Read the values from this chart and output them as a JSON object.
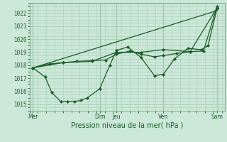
{
  "xlabel": "Pression niveau de la mer( hPa )",
  "bg_color": "#cce8d8",
  "grid_color": "#aacebb",
  "line_color": "#1a5c28",
  "ylim": [
    1014.5,
    1022.8
  ],
  "xlim": [
    0,
    175
  ],
  "xtick_labels": [
    "Mer",
    "Dim",
    "Jeu",
    "Ven",
    "Sam"
  ],
  "xtick_positions": [
    3,
    63,
    78,
    120,
    168
  ],
  "ytick_labels": [
    "1015",
    "1016",
    "1017",
    "1018",
    "1019",
    "1020",
    "1021",
    "1022"
  ],
  "ytick_values": [
    1015,
    1016,
    1017,
    1018,
    1019,
    1020,
    1021,
    1022
  ],
  "vline_positions": [
    3,
    63,
    78,
    120,
    168
  ],
  "series1_x": [
    3,
    14,
    20,
    28,
    34,
    40,
    46,
    52,
    63,
    72,
    78,
    88,
    100,
    112,
    120,
    130,
    142,
    154,
    160,
    168
  ],
  "series1_y": [
    1017.8,
    1017.1,
    1015.9,
    1015.2,
    1015.2,
    1015.2,
    1015.3,
    1015.5,
    1016.2,
    1018.0,
    1019.15,
    1019.4,
    1018.6,
    1017.2,
    1017.3,
    1018.5,
    1019.3,
    1019.2,
    1019.5,
    1022.35
  ],
  "series2_x": [
    3,
    18,
    30,
    42,
    56,
    68,
    78,
    90,
    100,
    112,
    120,
    132,
    144,
    156,
    168
  ],
  "series2_y": [
    1017.8,
    1018.1,
    1018.2,
    1018.3,
    1018.35,
    1018.4,
    1018.85,
    1019.1,
    1018.85,
    1018.65,
    1018.75,
    1018.9,
    1019.05,
    1019.1,
    1022.5
  ],
  "series3_x": [
    3,
    30,
    56,
    78,
    100,
    120,
    144,
    168
  ],
  "series3_y": [
    1017.8,
    1018.2,
    1018.3,
    1019.0,
    1019.0,
    1019.2,
    1019.05,
    1022.4
  ],
  "series4_x": [
    3,
    168
  ],
  "series4_y": [
    1017.8,
    1022.2
  ],
  "marker_size": 2.5,
  "line_width": 0.9
}
